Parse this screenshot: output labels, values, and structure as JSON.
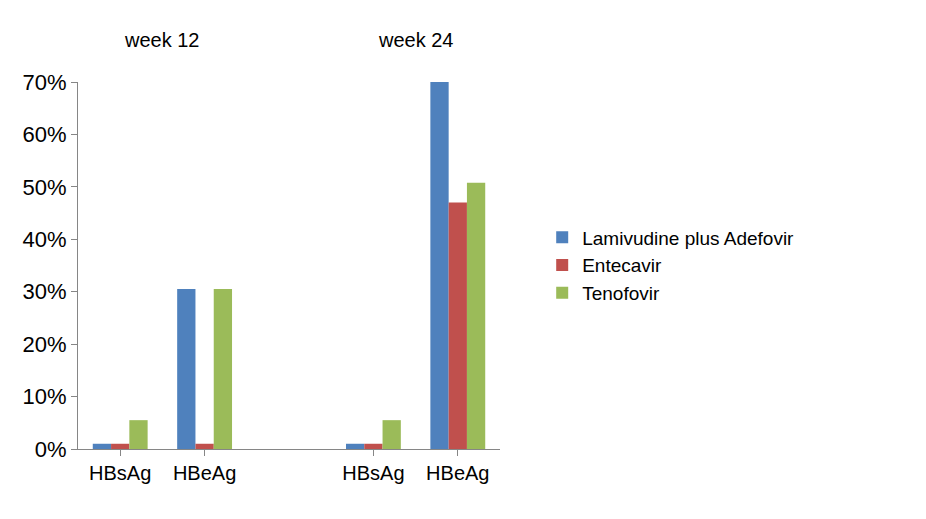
{
  "chart_data": {
    "type": "bar",
    "categories": [
      "HBsAg",
      "HBeAg",
      null,
      "HBsAg",
      "HBeAg"
    ],
    "annotations": [
      {
        "text": "week 12"
      },
      {
        "text": "week 24"
      }
    ],
    "series": [
      {
        "name": "Lamivudine plus Adefovir",
        "color": "#4F81BD",
        "values": [
          1,
          30.5,
          null,
          1,
          70
        ]
      },
      {
        "name": "Entecavir",
        "color": "#C0504D",
        "values": [
          1,
          1,
          null,
          1,
          47
        ]
      },
      {
        "name": "Tenofovir",
        "color": "#9BBB59",
        "values": [
          5.5,
          30.5,
          null,
          5.5,
          50.8
        ]
      }
    ],
    "ylim": [
      0,
      70
    ],
    "yticks": [
      {
        "value": 0,
        "label": "0%"
      },
      {
        "value": 10,
        "label": "10%"
      },
      {
        "value": 20,
        "label": "20%"
      },
      {
        "value": 30,
        "label": "30%"
      },
      {
        "value": 40,
        "label": "40%"
      },
      {
        "value": 50,
        "label": "50%"
      },
      {
        "value": 60,
        "label": "60%"
      },
      {
        "value": 70,
        "label": "70%"
      }
    ],
    "grid": false,
    "legend": "right"
  }
}
